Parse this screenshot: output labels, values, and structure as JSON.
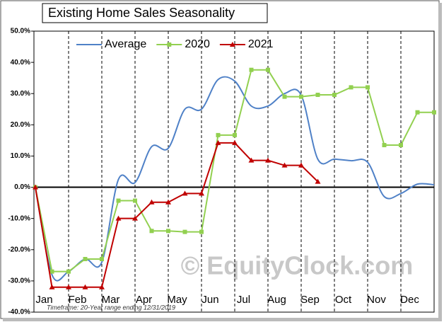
{
  "chart_data": {
    "type": "line",
    "title": "Existing Home Sales Seasonality",
    "categories": [
      null,
      "Jan",
      null,
      "Feb",
      null,
      "Mar",
      null,
      "Apr",
      null,
      "May",
      null,
      "Jun",
      null,
      "Jul",
      null,
      "Aug",
      null,
      "Sep",
      null,
      "Oct",
      null,
      "Nov",
      null,
      "Dec",
      null
    ],
    "series": [
      {
        "name": "Average",
        "color": "#4f81c7",
        "smooth": true,
        "marker": "none",
        "values": [
          0,
          -28,
          -27,
          -23,
          -24,
          2.5,
          1.5,
          13,
          12.5,
          25,
          25,
          34.5,
          34,
          26,
          26,
          30,
          29.5,
          9,
          9,
          8.5,
          8,
          -3,
          -2,
          1,
          0.8
        ]
      },
      {
        "name": "2020",
        "color": "#92d050",
        "smooth": false,
        "marker": "square",
        "values": [
          0,
          -27,
          -27,
          -23,
          -23,
          -4.3,
          -4.3,
          -14,
          -14,
          -14.3,
          -14.3,
          16.7,
          16.7,
          37.6,
          37.6,
          29,
          29,
          29.6,
          29.6,
          32,
          32,
          13.5,
          13.5,
          24,
          24
        ]
      },
      {
        "name": "2021",
        "color": "#c00000",
        "smooth": false,
        "marker": "triangle",
        "values": [
          0,
          -32,
          -32,
          -32,
          -32,
          -10,
          -10,
          -4.8,
          -4.8,
          -2,
          -2,
          14.2,
          14.2,
          8.6,
          8.6,
          7,
          7,
          1.8,
          null,
          null,
          null,
          null,
          null,
          null,
          null
        ]
      }
    ],
    "ylim": [
      -40,
      50
    ],
    "yticks": [
      {
        "value": -40,
        "label": "-40.0%"
      },
      {
        "value": -30,
        "label": "-30.0%"
      },
      {
        "value": -20,
        "label": "-20.0%"
      },
      {
        "value": -10,
        "label": "-10.0%"
      },
      {
        "value": 0,
        "label": "0.0%"
      },
      {
        "value": 10,
        "label": "10.0%"
      },
      {
        "value": 20,
        "label": "20.0%"
      },
      {
        "value": 30,
        "label": "30.0%"
      },
      {
        "value": 40,
        "label": "40.0%"
      },
      {
        "value": 50,
        "label": "50.0%"
      }
    ],
    "legend": "top",
    "footnote": "Timeframe: 20-Year range ending 12/31/2019",
    "watermark": "© EquityClock.com"
  }
}
